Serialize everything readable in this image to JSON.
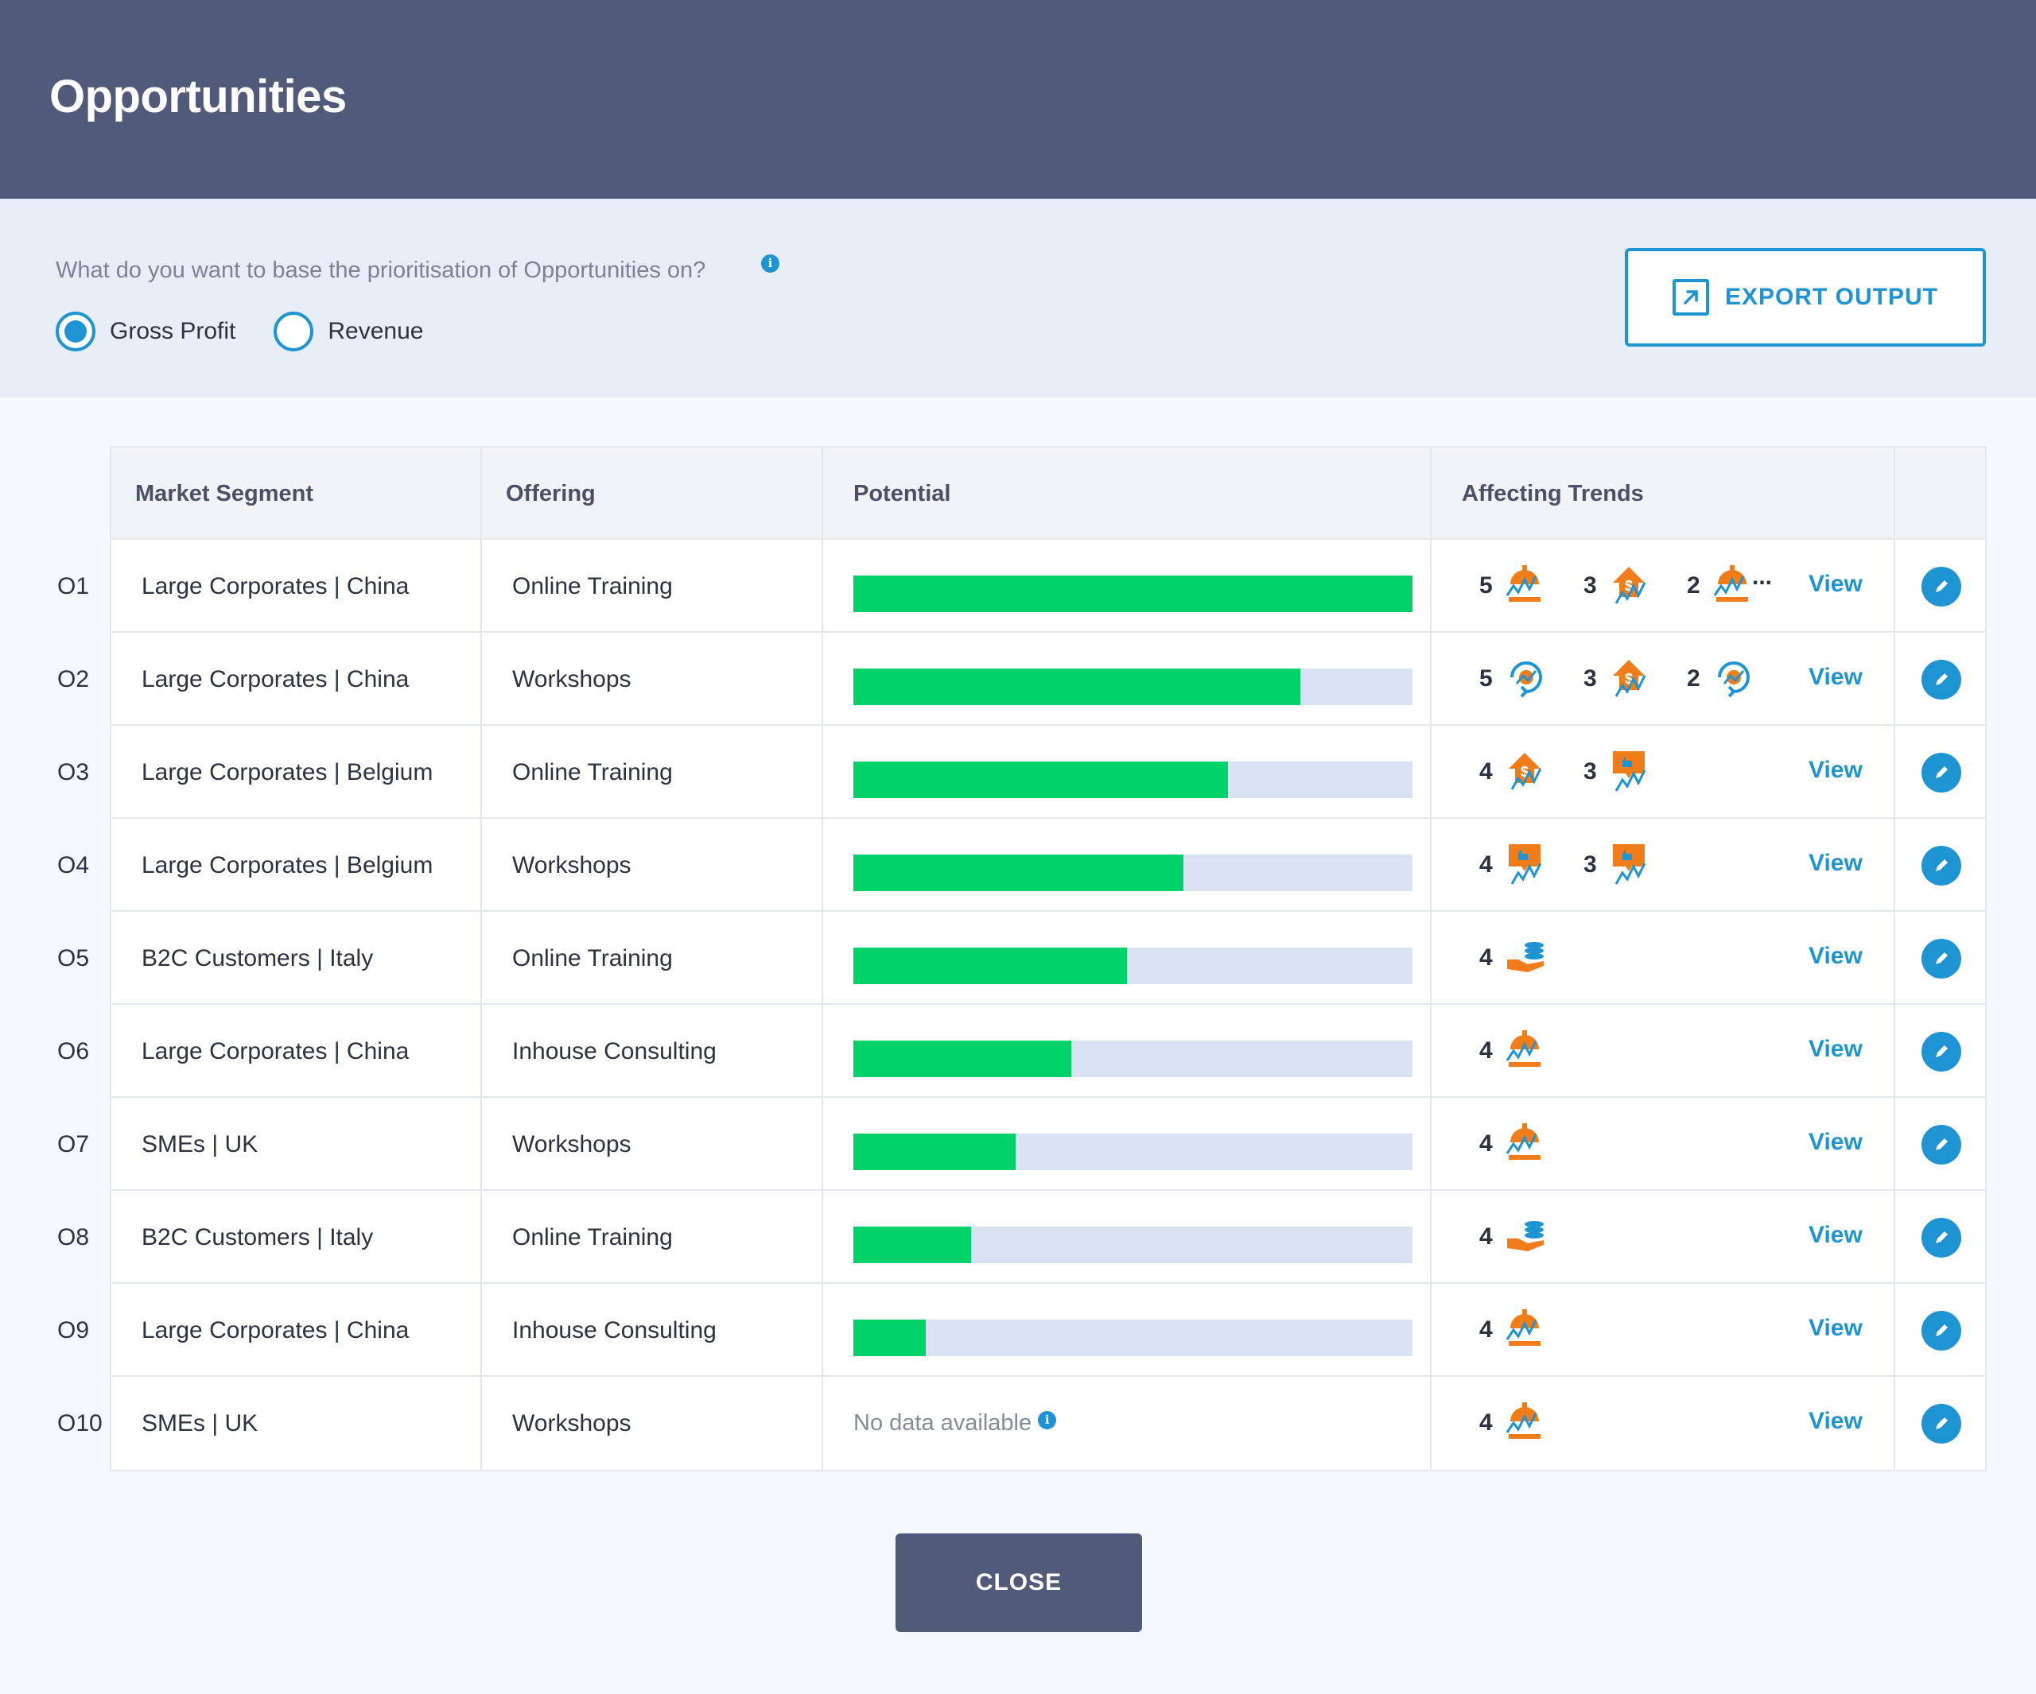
{
  "header": {
    "title": "Opportunities"
  },
  "prioritisation": {
    "question": "What do you want to base the prioritisation of Opportunities on?",
    "options": [
      {
        "label": "Gross Profit",
        "checked": true
      },
      {
        "label": "Revenue",
        "checked": false
      }
    ],
    "export_label": "EXPORT OUTPUT"
  },
  "table": {
    "headers": {
      "segment": "Market Segment",
      "offering": "Offering",
      "potential": "Potential",
      "trends": "Affecting Trends"
    },
    "view_label": "View",
    "no_data_label": "No data available",
    "ellipsis": "...",
    "rows": [
      {
        "id": "O1",
        "segment": "Large Corporates | China",
        "offering": "Online Training",
        "potential": 1.0,
        "trends": [
          {
            "count": "5",
            "icon": "crisis-trend-icon"
          },
          {
            "count": "3",
            "icon": "dollar-trend-icon"
          },
          {
            "count": "2",
            "icon": "crisis-trend-icon"
          }
        ],
        "more": true
      },
      {
        "id": "O2",
        "segment": "Large Corporates | China",
        "offering": "Workshops",
        "potential": 0.8,
        "trends": [
          {
            "count": "5",
            "icon": "cycle-trend-icon"
          },
          {
            "count": "3",
            "icon": "dollar-trend-icon"
          },
          {
            "count": "2",
            "icon": "cycle-trend-icon"
          }
        ],
        "more": false
      },
      {
        "id": "O3",
        "segment": "Large Corporates | Belgium",
        "offering": "Online Training",
        "potential": 0.67,
        "trends": [
          {
            "count": "4",
            "icon": "dollar-trend-icon"
          },
          {
            "count": "3",
            "icon": "thumbs-up-trend-icon"
          }
        ],
        "more": false
      },
      {
        "id": "O4",
        "segment": "Large Corporates | Belgium",
        "offering": "Workshops",
        "potential": 0.59,
        "trends": [
          {
            "count": "4",
            "icon": "thumbs-up-trend-icon"
          },
          {
            "count": "3",
            "icon": "thumbs-up-trend-icon"
          }
        ],
        "more": false
      },
      {
        "id": "O5",
        "segment": "B2C Customers | Italy",
        "offering": "Online Training",
        "potential": 0.49,
        "trends": [
          {
            "count": "4",
            "icon": "coins-hand-icon"
          }
        ],
        "more": false
      },
      {
        "id": "O6",
        "segment": "Large Corporates | China",
        "offering": "Inhouse Consulting",
        "potential": 0.39,
        "trends": [
          {
            "count": "4",
            "icon": "crisis-trend-icon"
          }
        ],
        "more": false
      },
      {
        "id": "O7",
        "segment": "SMEs | UK",
        "offering": "Workshops",
        "potential": 0.29,
        "trends": [
          {
            "count": "4",
            "icon": "crisis-trend-icon"
          }
        ],
        "more": false
      },
      {
        "id": "O8",
        "segment": "B2C Customers | Italy",
        "offering": "Online Training",
        "potential": 0.21,
        "trends": [
          {
            "count": "4",
            "icon": "coins-hand-icon"
          }
        ],
        "more": false
      },
      {
        "id": "O9",
        "segment": "Large Corporates | China",
        "offering": "Inhouse Consulting",
        "potential": 0.13,
        "trends": [
          {
            "count": "4",
            "icon": "crisis-trend-icon"
          }
        ],
        "more": false
      },
      {
        "id": "O10",
        "segment": "SMEs | UK",
        "offering": "Workshops",
        "potential": null,
        "trends": [
          {
            "count": "4",
            "icon": "crisis-trend-icon"
          }
        ],
        "more": false
      }
    ]
  },
  "footer": {
    "close_label": "CLOSE"
  },
  "colors": {
    "header": "#525a7a",
    "accent": "#1f94d2",
    "bar_fill": "#00d26a",
    "bar_track": "#d8e2f2",
    "trend_icon": "#f07d1a"
  }
}
